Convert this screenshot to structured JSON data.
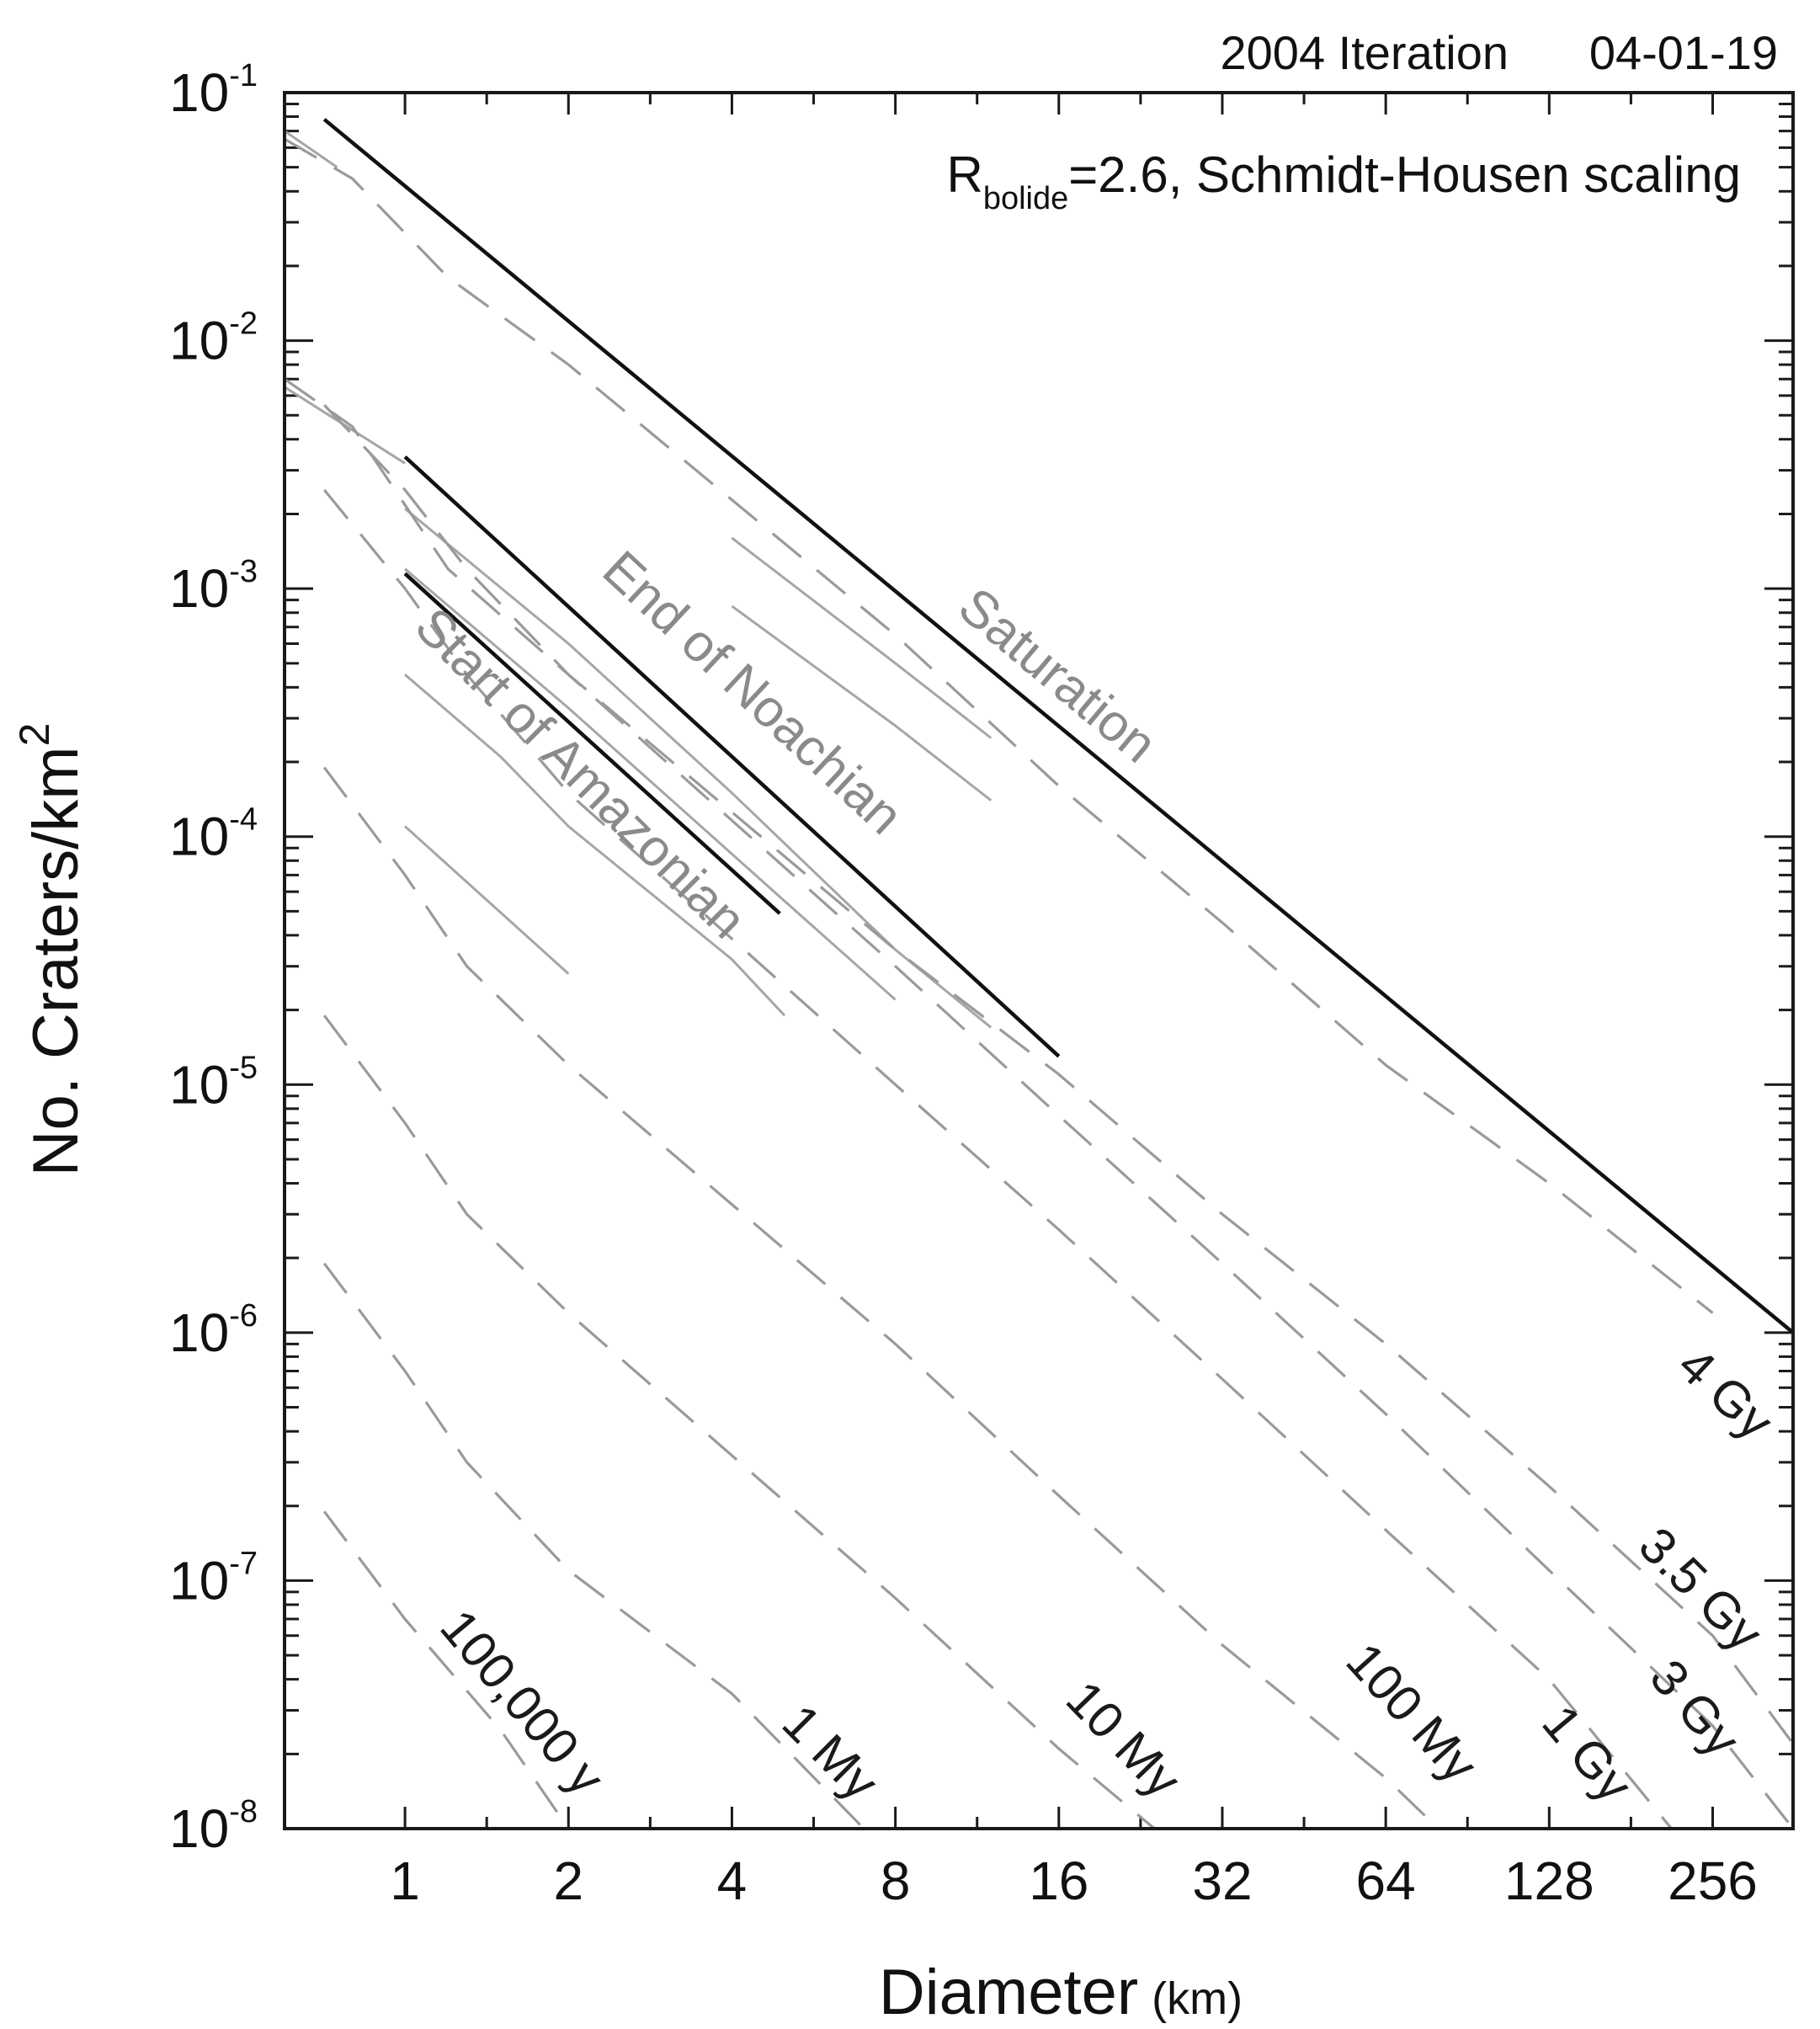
{
  "header": {
    "iteration": "2004 Iteration",
    "date": "04-01-19"
  },
  "subtitle": {
    "prefix": "R",
    "subscript": "bolide",
    "rest": "=2.6, Schmidt-Housen scaling"
  },
  "axes": {
    "xlabel": "Diameter",
    "xunit": "(km)",
    "ylabel": "No. Craters/km",
    "ylabel_sup": "2"
  },
  "colors": {
    "isochron": "#9a9a9a",
    "boundary": "#111111",
    "boundary_label": "#8a8a8a"
  },
  "chart_data": {
    "type": "line",
    "x_scale": "log2",
    "y_scale": "log10",
    "xlim": [
      0.6,
      360
    ],
    "ylim": [
      1e-08,
      0.1
    ],
    "x_ticks": [
      1,
      2,
      4,
      8,
      16,
      32,
      64,
      128,
      256
    ],
    "x_tick_labels": [
      "1",
      "2",
      "4",
      "8",
      "16",
      "32",
      "64",
      "128",
      "256"
    ],
    "y_ticks": [
      1e-08,
      1e-07,
      1e-06,
      1e-05,
      0.0001,
      0.001,
      0.01,
      0.1
    ],
    "y_tick_exponents": [
      "-8",
      "-7",
      "-6",
      "-5",
      "-4",
      "-3",
      "-2",
      "-1"
    ],
    "boundaries": [
      {
        "name": "Saturation",
        "points": [
          [
            0.71,
            0.078
          ],
          [
            360,
            1e-06
          ]
        ]
      },
      {
        "name": "End of Noachian",
        "points": [
          [
            1.0,
            0.0034
          ],
          [
            16,
            1.3e-05
          ]
        ]
      },
      {
        "name": "Start of Amazonian",
        "points": [
          [
            1.0,
            0.00115
          ],
          [
            4.9,
            4.9e-05
          ]
        ]
      }
    ],
    "isochrons": [
      {
        "name": "4 Gy",
        "points": [
          [
            0.6,
            0.065
          ],
          [
            0.8,
            0.045
          ],
          [
            1.2,
            0.018
          ],
          [
            2,
            0.008
          ],
          [
            8,
            0.00065
          ],
          [
            16,
            0.00016
          ],
          [
            32,
            4.5e-05
          ],
          [
            64,
            1.2e-05
          ],
          [
            128,
            4e-06
          ],
          [
            256,
            1.2e-06
          ]
        ]
      },
      {
        "name": "3.5 Gy",
        "points": [
          [
            0.6,
            0.007
          ],
          [
            0.8,
            0.0045
          ],
          [
            1.2,
            0.0012
          ],
          [
            2,
            0.00045
          ],
          [
            8,
            3.5e-05
          ],
          [
            16,
            1.1e-05
          ],
          [
            32,
            3e-06
          ],
          [
            64,
            9e-07
          ],
          [
            128,
            2.4e-07
          ],
          [
            256,
            6e-08
          ],
          [
            360,
            2.2e-08
          ]
        ]
      },
      {
        "name": "3 Gy",
        "points": [
          [
            0.71,
            0.0055
          ],
          [
            1.0,
            0.0025
          ],
          [
            1.3,
            0.0012
          ],
          [
            2,
            0.00045
          ],
          [
            8,
            3e-05
          ],
          [
            16,
            7.5e-06
          ],
          [
            32,
            1.9e-06
          ],
          [
            64,
            4.7e-07
          ],
          [
            128,
            1.1e-07
          ],
          [
            256,
            2.6e-08
          ],
          [
            360,
            1e-08
          ]
        ]
      },
      {
        "name": "1 Gy",
        "points": [
          [
            0.71,
            0.0025
          ],
          [
            1.0,
            0.001
          ],
          [
            1.3,
            0.00045
          ],
          [
            2,
            0.00015
          ],
          [
            8,
            1e-05
          ],
          [
            16,
            2.6e-06
          ],
          [
            32,
            6.5e-07
          ],
          [
            64,
            1.6e-07
          ],
          [
            128,
            4e-08
          ],
          [
            215,
            1e-08
          ]
        ]
      },
      {
        "name": "100 My",
        "points": [
          [
            0.71,
            0.00019
          ],
          [
            1.0,
            7e-05
          ],
          [
            1.3,
            3e-05
          ],
          [
            2,
            1.2e-05
          ],
          [
            8,
            9e-07
          ],
          [
            16,
            2.2e-07
          ],
          [
            32,
            5.5e-08
          ],
          [
            64,
            1.6e-08
          ],
          [
            80,
            1e-08
          ]
        ]
      },
      {
        "name": "10 My",
        "points": [
          [
            0.71,
            1.9e-05
          ],
          [
            1.0,
            7e-06
          ],
          [
            1.3,
            3e-06
          ],
          [
            2,
            1.2e-06
          ],
          [
            8,
            8.5e-08
          ],
          [
            16,
            2.1e-08
          ],
          [
            24,
            1e-08
          ]
        ]
      },
      {
        "name": "1 My",
        "points": [
          [
            0.71,
            1.9e-06
          ],
          [
            1.0,
            7e-07
          ],
          [
            1.3,
            3e-07
          ],
          [
            2,
            1.1e-07
          ],
          [
            4,
            3.5e-08
          ],
          [
            7,
            1e-08
          ]
        ]
      },
      {
        "name": "100,000 y",
        "points": [
          [
            0.71,
            1.9e-07
          ],
          [
            1.0,
            7e-08
          ],
          [
            1.5,
            2.5e-08
          ],
          [
            2,
            1e-08
          ]
        ]
      }
    ],
    "fragments": [
      {
        "points": [
          [
            0.6,
            0.07
          ],
          [
            0.75,
            0.05
          ]
        ]
      },
      {
        "points": [
          [
            1.0,
            0.0021
          ],
          [
            2,
            0.0006
          ],
          [
            4,
            0.00015
          ],
          [
            8,
            3.5e-05
          ],
          [
            12,
            1.7e-05
          ]
        ]
      },
      {
        "points": [
          [
            1.0,
            0.0012
          ],
          [
            2,
            0.00033
          ],
          [
            5,
            5.5e-05
          ],
          [
            8,
            2.2e-05
          ]
        ]
      },
      {
        "points": [
          [
            1.0,
            0.00045
          ],
          [
            1.5,
            0.00021
          ],
          [
            2,
            0.00011
          ],
          [
            4,
            3.2e-05
          ],
          [
            5,
            1.9e-05
          ]
        ]
      },
      {
        "points": [
          [
            1.0,
            0.00011
          ],
          [
            2,
            2.8e-05
          ]
        ]
      },
      {
        "points": [
          [
            4,
            0.00085
          ],
          [
            8,
            0.00028
          ],
          [
            12,
            0.00014
          ]
        ]
      },
      {
        "points": [
          [
            4,
            0.0016
          ],
          [
            8,
            0.0005
          ],
          [
            12,
            0.00025
          ]
        ]
      },
      {
        "points": [
          [
            0.6,
            0.0065
          ],
          [
            1.0,
            0.0032
          ]
        ]
      }
    ]
  }
}
